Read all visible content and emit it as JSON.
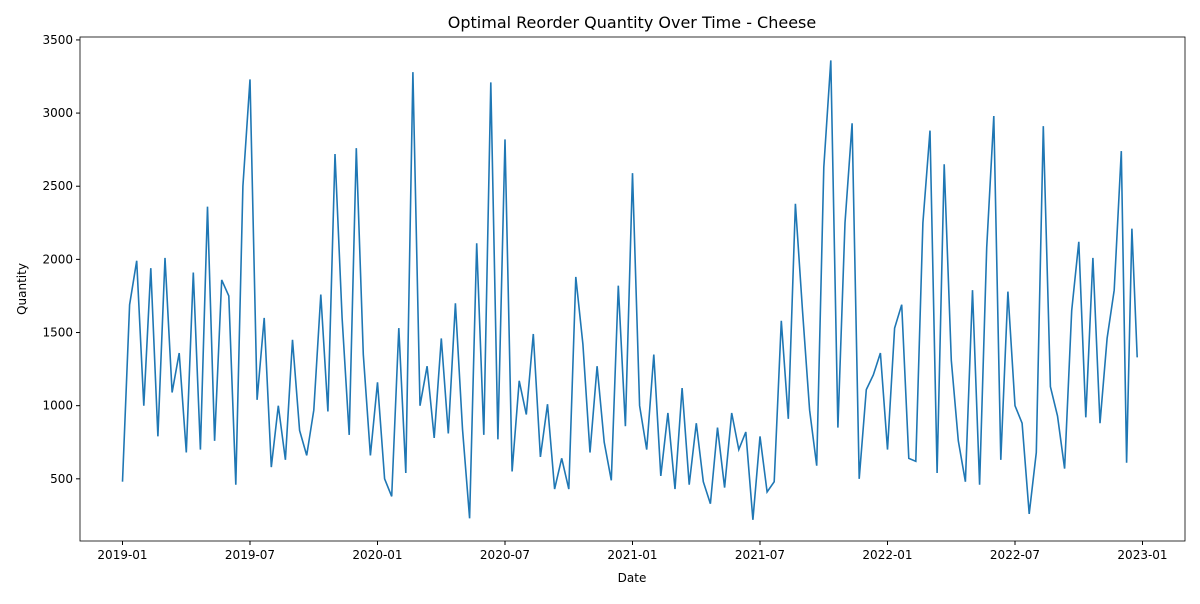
{
  "chart_data": {
    "type": "line",
    "title": "Optimal Reorder Quantity Over Time - Cheese",
    "x_label": "Date",
    "y_label": "Quantity",
    "x": [
      "2019-01",
      "2019-01",
      "2019-01",
      "2019-02",
      "2019-02",
      "2019-02",
      "2019-03",
      "2019-03",
      "2019-03",
      "2019-04",
      "2019-04",
      "2019-04",
      "2019-05",
      "2019-05",
      "2019-05",
      "2019-06",
      "2019-06",
      "2019-06",
      "2019-07",
      "2019-07",
      "2019-07",
      "2019-08",
      "2019-08",
      "2019-08",
      "2019-09",
      "2019-09",
      "2019-09",
      "2019-10",
      "2019-10",
      "2019-10",
      "2019-11",
      "2019-11",
      "2019-11",
      "2019-12",
      "2019-12",
      "2019-12",
      "2020-01",
      "2020-01",
      "2020-01",
      "2020-02",
      "2020-02",
      "2020-02",
      "2020-03",
      "2020-03",
      "2020-03",
      "2020-04",
      "2020-04",
      "2020-04",
      "2020-05",
      "2020-05",
      "2020-05",
      "2020-06",
      "2020-06",
      "2020-06",
      "2020-07",
      "2020-07",
      "2020-07",
      "2020-08",
      "2020-08",
      "2020-08",
      "2020-09",
      "2020-09",
      "2020-09",
      "2020-10",
      "2020-10",
      "2020-10",
      "2020-11",
      "2020-11",
      "2020-11",
      "2020-12",
      "2020-12",
      "2020-12",
      "2021-01",
      "2021-01",
      "2021-01",
      "2021-02",
      "2021-02",
      "2021-02",
      "2021-03",
      "2021-03",
      "2021-03",
      "2021-04",
      "2021-04",
      "2021-04",
      "2021-05",
      "2021-05",
      "2021-05",
      "2021-06",
      "2021-06",
      "2021-06",
      "2021-07",
      "2021-07",
      "2021-07",
      "2021-08",
      "2021-08",
      "2021-08",
      "2021-09",
      "2021-09",
      "2021-09",
      "2021-10",
      "2021-10",
      "2021-10",
      "2021-11",
      "2021-11",
      "2021-11",
      "2021-12",
      "2021-12",
      "2021-12",
      "2022-01",
      "2022-01",
      "2022-01",
      "2022-02",
      "2022-02",
      "2022-02",
      "2022-03",
      "2022-03",
      "2022-03",
      "2022-04",
      "2022-04",
      "2022-04",
      "2022-05",
      "2022-05",
      "2022-05",
      "2022-06",
      "2022-06",
      "2022-06",
      "2022-07",
      "2022-07",
      "2022-07",
      "2022-08",
      "2022-08",
      "2022-08",
      "2022-09",
      "2022-09",
      "2022-09",
      "2022-10",
      "2022-10",
      "2022-10",
      "2022-11",
      "2022-11",
      "2022-11",
      "2022-12",
      "2022-12",
      "2022-12",
      "2022-12"
    ],
    "series": [
      {
        "name": "Quantity",
        "color": "#1f77b4",
        "values": [
          480,
          1690,
          1990,
          1000,
          1940,
          790,
          2010,
          1090,
          1360,
          680,
          1910,
          700,
          2360,
          760,
          1860,
          1750,
          460,
          2500,
          3230,
          1040,
          1600,
          580,
          1000,
          630,
          1450,
          830,
          660,
          970,
          1760,
          960,
          2720,
          1600,
          800,
          2760,
          1350,
          660,
          1160,
          500,
          380,
          1530,
          540,
          3280,
          1000,
          1270,
          780,
          1460,
          810,
          1700,
          840,
          230,
          2110,
          800,
          3210,
          770,
          2820,
          550,
          1170,
          940,
          1490,
          650,
          1010,
          430,
          640,
          430,
          1880,
          1420,
          680,
          1270,
          750,
          490,
          1820,
          860,
          2590,
          1000,
          700,
          1350,
          520,
          950,
          430,
          1120,
          460,
          880,
          480,
          330,
          850,
          440,
          950,
          700,
          820,
          220,
          790,
          410,
          480,
          1580,
          910,
          2380,
          1650,
          970,
          590,
          2630,
          3360,
          850,
          2250,
          2930,
          500,
          1110,
          1210,
          1360,
          700,
          1530,
          1690,
          640,
          620,
          2250,
          2880,
          540,
          2650,
          1310,
          760,
          480,
          1790,
          460,
          2080,
          2980,
          630,
          1780,
          1000,
          880,
          260,
          680,
          2910,
          1130,
          930,
          570,
          1650,
          2120,
          920,
          2010,
          880,
          1460,
          1790,
          2740,
          610,
          2210,
          1330
        ]
      }
    ],
    "xlim": [
      "2018-11",
      "2023-03"
    ],
    "xticks": [
      "2019-01",
      "2019-07",
      "2020-01",
      "2020-07",
      "2021-01",
      "2021-07",
      "2022-01",
      "2022-07",
      "2023-01"
    ],
    "ylim": [
      75,
      3520
    ],
    "yticks": [
      500,
      1000,
      1500,
      2000,
      2500,
      3000,
      3500
    ],
    "grid": false
  }
}
